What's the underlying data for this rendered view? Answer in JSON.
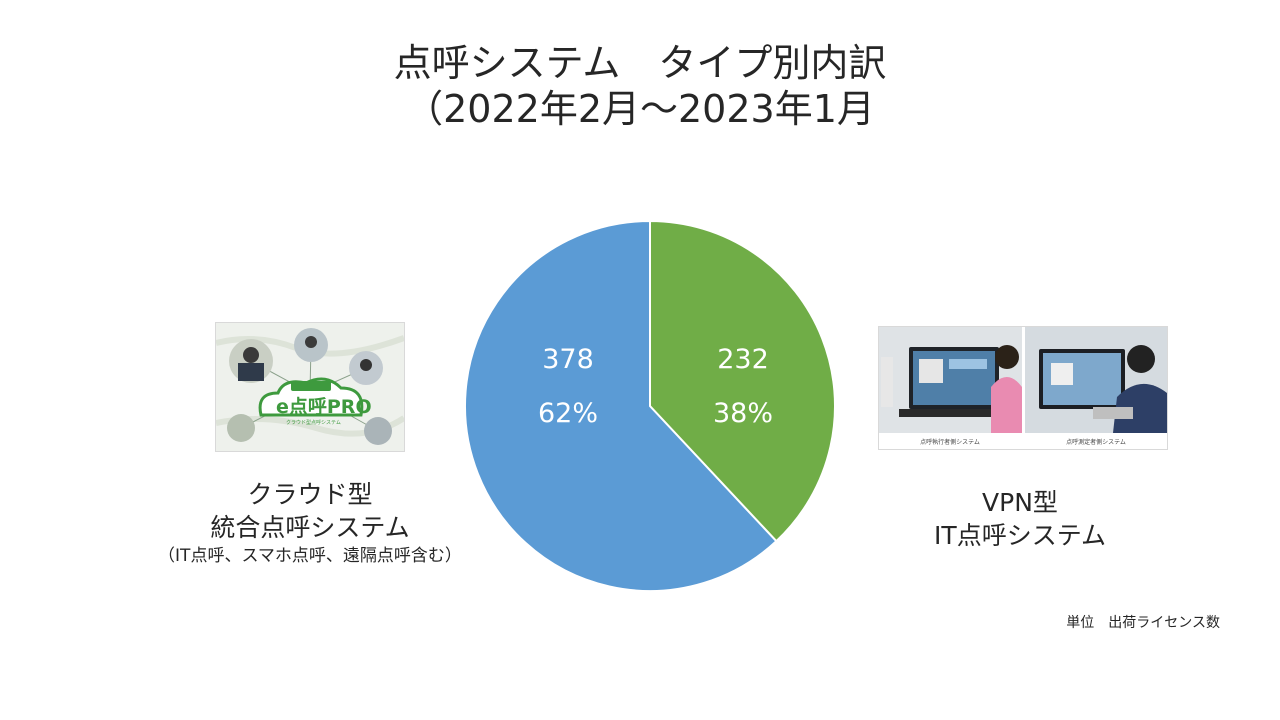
{
  "chart_data": {
    "type": "pie",
    "title_lines": [
      "点呼システム　タイプ別内訳",
      "（2022年2月～2023年1月"
    ],
    "slices": [
      {
        "name_lines": [
          "クラウド型",
          "統合点呼システム"
        ],
        "subtitle": "（IT点呼、スマホ点呼、遠隔点呼含む）",
        "value": 378,
        "percent_label": "62%",
        "color": "#5b9bd5"
      },
      {
        "name_lines": [
          "VPN型",
          "IT点呼システム"
        ],
        "subtitle": "",
        "value": 232,
        "percent_label": "38%",
        "color": "#70ad47"
      }
    ],
    "legend": "none",
    "unit_note": "単位　出荷ライセンス数"
  },
  "images": {
    "left_thumb": {
      "logo_text": "e点呼PRO",
      "logo_sub": "クラウド型点呼システム"
    },
    "right_thumb": {
      "caption_left": "点呼執行者側システム",
      "caption_right": "点呼測定者側システム"
    }
  }
}
